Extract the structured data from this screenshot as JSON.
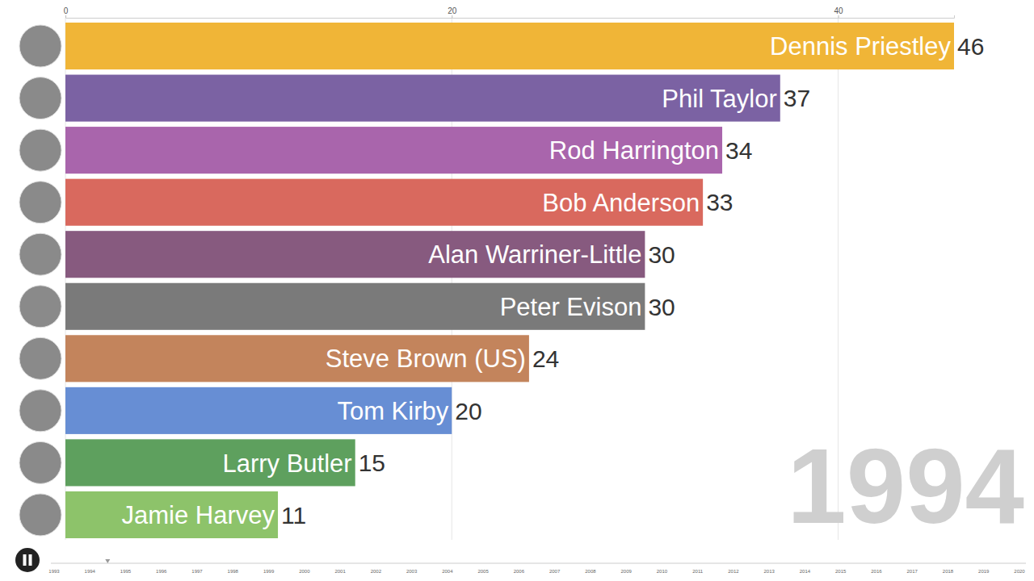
{
  "chart_data": {
    "type": "bar",
    "orientation": "horizontal",
    "title": "1994",
    "categories": [
      "Dennis Priestley",
      "Phil Taylor",
      "Rod Harrington",
      "Bob Anderson",
      "Alan Warriner-Little",
      "Peter Evison",
      "Steve Brown (US)",
      "Tom Kirby",
      "Larry Butler",
      "Jamie Harvey"
    ],
    "values": [
      46,
      37,
      34,
      33,
      30,
      30,
      24,
      20,
      15,
      11
    ],
    "colors": [
      "#f0b537",
      "#7b62a3",
      "#a965ac",
      "#d9695e",
      "#875a7f",
      "#7a7a7a",
      "#c3845c",
      "#678ed4",
      "#5ea05e",
      "#8dc36a"
    ],
    "xlim": [
      0,
      46
    ],
    "xticks": [
      0,
      20,
      40
    ],
    "grid": true,
    "data_labels": true
  },
  "timeline": {
    "ticks": [
      1993,
      1994,
      1995,
      1996,
      1997,
      1998,
      1999,
      2000,
      2001,
      2002,
      2003,
      2004,
      2005,
      2006,
      2007,
      2008,
      2009,
      2010,
      2011,
      2012,
      2013,
      2014,
      2015,
      2016,
      2017,
      2018,
      2019,
      2020
    ]
  }
}
